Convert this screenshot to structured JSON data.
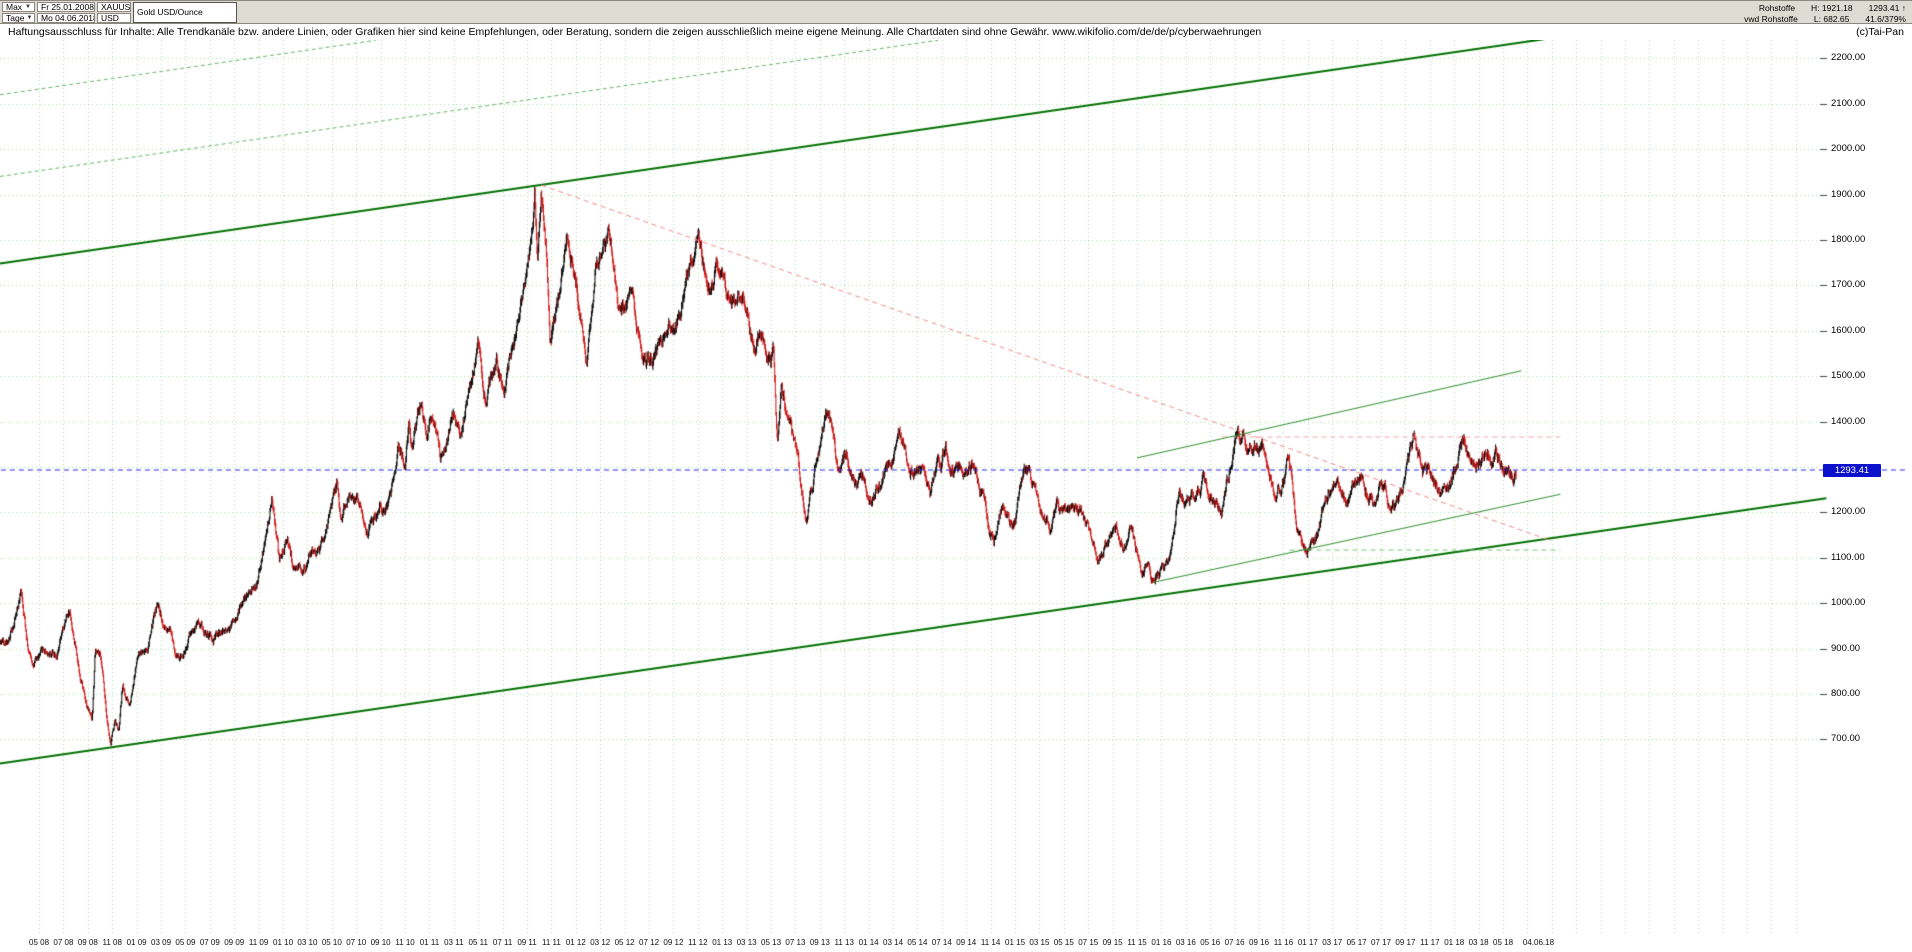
{
  "toolbar": {
    "range_label": "Max",
    "range_start_date": "Fr 25.01.2008",
    "period_label": "Tage",
    "current_date": "Mo 04.06.2018",
    "symbol": "XAUUSD",
    "currency": "USD",
    "instrument_name": "Gold USD/Ounce",
    "dropdown_icon": "▼"
  },
  "quote": {
    "category": "Rohstoffe",
    "source": "vwd Rohstoffe",
    "high_label": "H: 1921.18",
    "low_label": "L: 682.65",
    "last": "1293.41",
    "direction": "↑",
    "change": "41.6/379%"
  },
  "disclaimer": {
    "text": "Haftungsausschluss für Inhalte: Alle Trendkanäle bzw. andere Linien, oder Grafiken hier sind keine Empfehlungen, oder Beratung, sondern die zeigen ausschließlich meine eigene Meinung. Alle Chartdaten sind ohne Gewähr.  ",
    "url": "www.wikifolio.com/de/de/p/cyberwaehrungen",
    "copyright": "(c)Tai-Pan"
  },
  "chart_data": {
    "type": "ohlc",
    "instrument": "Gold USD/Ounce (XAUUSD)",
    "x_range": {
      "start": "25.01.2008",
      "end": "04.06.2018"
    },
    "ylim": [
      270,
      2240
    ],
    "y_grid_step": 100,
    "grid": true,
    "legend": "none",
    "y_grid_values": [
      700,
      800,
      900,
      1000,
      1100,
      1200,
      1300,
      1400,
      1500,
      1600,
      1700,
      1800,
      1900,
      2000,
      2100,
      2200
    ],
    "y_tick_values": [
      2200,
      2100,
      2000,
      1900,
      1800,
      1700,
      1600,
      1500,
      1400,
      1200,
      1100,
      1000,
      900,
      800,
      700
    ],
    "x_first_tick_month_index": 4,
    "x_tick_step_months": 2,
    "x_tick_labels": [
      "05 08",
      "07 08",
      "09 08",
      "11 08",
      "01 09",
      "03 09",
      "05 09",
      "07 09",
      "09 09",
      "11 09",
      "01 10",
      "03 10",
      "05 10",
      "07 10",
      "09 10",
      "11 10",
      "01 11",
      "03 11",
      "05 11",
      "07 11",
      "09 11",
      "11 11",
      "01 12",
      "03 12",
      "05 12",
      "07 12",
      "09 12",
      "11 12",
      "01 13",
      "03 13",
      "05 13",
      "07 13",
      "09 13",
      "11 13",
      "01 14",
      "03 14",
      "05 14",
      "07 14",
      "09 14",
      "11 14",
      "01 15",
      "03 15",
      "05 15",
      "07 15",
      "09 15",
      "11 15",
      "01 16",
      "03 16",
      "05 16",
      "07 16",
      "09 16",
      "11 16",
      "01 17",
      "03 17",
      "05 17",
      "07 17",
      "09 17",
      "11 17",
      "01 18",
      "03 18",
      "05 18"
    ],
    "x_end_label": "04.06.18",
    "last_month_index": 125.1,
    "key_points": {
      "high": {
        "price": 1921.18
      },
      "low": {
        "price": 682.65
      },
      "last": {
        "price": 1293.41
      }
    },
    "anchors_note": "pairs of [month index from Jan 2008, approx gold price in USD] tracing the daily close path visible in the chart",
    "monthly_anchors": [
      [
        0.8,
        912
      ],
      [
        1.6,
        930
      ],
      [
        2.2,
        988
      ],
      [
        2.55,
        1028
      ],
      [
        3.2,
        898
      ],
      [
        3.6,
        872
      ],
      [
        4.5,
        890
      ],
      [
        5.6,
        902
      ],
      [
        6.5,
        978
      ],
      [
        7.3,
        858
      ],
      [
        7.85,
        792
      ],
      [
        8.35,
        748
      ],
      [
        8.6,
        892
      ],
      [
        9.1,
        862
      ],
      [
        9.85,
        685
      ],
      [
        10.25,
        748
      ],
      [
        10.55,
        722
      ],
      [
        10.85,
        812
      ],
      [
        11.4,
        768
      ],
      [
        12.0,
        875
      ],
      [
        12.9,
        908
      ],
      [
        13.65,
        995
      ],
      [
        14.5,
        938
      ],
      [
        15.55,
        872
      ],
      [
        17.0,
        975
      ],
      [
        18.25,
        912
      ],
      [
        19.5,
        948
      ],
      [
        20.3,
        992
      ],
      [
        20.9,
        1012
      ],
      [
        21.9,
        1048
      ],
      [
        22.87,
        1172
      ],
      [
        23.1,
        1218
      ],
      [
        23.7,
        1082
      ],
      [
        24.35,
        1152
      ],
      [
        25.15,
        1052
      ],
      [
        26.3,
        1105
      ],
      [
        27.3,
        1132
      ],
      [
        28.45,
        1245
      ],
      [
        28.7,
        1180
      ],
      [
        29.7,
        1260
      ],
      [
        30.9,
        1158
      ],
      [
        31.8,
        1212
      ],
      [
        32.9,
        1255
      ],
      [
        33.45,
        1378
      ],
      [
        34.0,
        1332
      ],
      [
        34.3,
        1420
      ],
      [
        34.55,
        1338
      ],
      [
        35.2,
        1428
      ],
      [
        35.8,
        1382
      ],
      [
        36.05,
        1418
      ],
      [
        36.9,
        1312
      ],
      [
        38.0,
        1415
      ],
      [
        38.5,
        1398
      ],
      [
        39.6,
        1512
      ],
      [
        40.05,
        1568
      ],
      [
        40.55,
        1478
      ],
      [
        41.5,
        1528
      ],
      [
        42.05,
        1480
      ],
      [
        43.2,
        1618
      ],
      [
        44.3,
        1788
      ],
      [
        44.62,
        1908
      ],
      [
        44.85,
        1732
      ],
      [
        45.17,
        1920
      ],
      [
        45.55,
        1790
      ],
      [
        45.88,
        1588
      ],
      [
        46.5,
        1672
      ],
      [
        47.27,
        1795
      ],
      [
        48.1,
        1692
      ],
      [
        48.92,
        1540
      ],
      [
        49.7,
        1732
      ],
      [
        50.85,
        1788
      ],
      [
        51.45,
        1642
      ],
      [
        52.6,
        1652
      ],
      [
        53.5,
        1530
      ],
      [
        54.7,
        1568
      ],
      [
        56.0,
        1612
      ],
      [
        57.9,
        1792
      ],
      [
        58.9,
        1698
      ],
      [
        59.6,
        1740
      ],
      [
        61.0,
        1648
      ],
      [
        61.65,
        1692
      ],
      [
        62.6,
        1570
      ],
      [
        63.25,
        1615
      ],
      [
        64.2,
        1555
      ],
      [
        64.52,
        1348
      ],
      [
        64.85,
        1475
      ],
      [
        65.65,
        1385
      ],
      [
        66.85,
        1182
      ],
      [
        67.6,
        1292
      ],
      [
        68.75,
        1428
      ],
      [
        69.45,
        1305
      ],
      [
        70.2,
        1340
      ],
      [
        71.0,
        1258
      ],
      [
        71.55,
        1248
      ],
      [
        72.05,
        1192
      ],
      [
        72.9,
        1265
      ],
      [
        74.5,
        1382
      ],
      [
        75.4,
        1282
      ],
      [
        76.6,
        1308
      ],
      [
        77.1,
        1242
      ],
      [
        78.3,
        1338
      ],
      [
        79.6,
        1288
      ],
      [
        80.6,
        1312
      ],
      [
        81.6,
        1212
      ],
      [
        82.25,
        1132
      ],
      [
        83.0,
        1218
      ],
      [
        83.65,
        1172
      ],
      [
        84.05,
        1188
      ],
      [
        84.72,
        1298
      ],
      [
        85.6,
        1252
      ],
      [
        86.3,
        1190
      ],
      [
        87.0,
        1152
      ],
      [
        87.5,
        1205
      ],
      [
        88.4,
        1175
      ],
      [
        89.2,
        1208
      ],
      [
        90.0,
        1162
      ],
      [
        90.78,
        1075
      ],
      [
        91.5,
        1122
      ],
      [
        92.35,
        1152
      ],
      [
        93.0,
        1108
      ],
      [
        93.5,
        1180
      ],
      [
        94.4,
        1062
      ],
      [
        94.85,
        1080
      ],
      [
        95.35,
        1048
      ],
      [
        96.0,
        1075
      ],
      [
        96.7,
        1092
      ],
      [
        97.4,
        1245
      ],
      [
        98.3,
        1210
      ],
      [
        99.45,
        1278
      ],
      [
        100.3,
        1228
      ],
      [
        101.0,
        1212
      ],
      [
        101.82,
        1335
      ],
      [
        102.3,
        1372
      ],
      [
        103.1,
        1330
      ],
      [
        103.75,
        1348
      ],
      [
        104.6,
        1308
      ],
      [
        105.35,
        1252
      ],
      [
        106.05,
        1270
      ],
      [
        106.32,
        1318
      ],
      [
        107.1,
        1172
      ],
      [
        107.92,
        1128
      ],
      [
        108.7,
        1158
      ],
      [
        109.7,
        1242
      ],
      [
        110.5,
        1258
      ],
      [
        111.3,
        1228
      ],
      [
        112.35,
        1288
      ],
      [
        113.3,
        1216
      ],
      [
        113.95,
        1268
      ],
      [
        115.15,
        1208
      ],
      [
        116.7,
        1350
      ],
      [
        117.4,
        1282
      ],
      [
        118.1,
        1302
      ],
      [
        118.5,
        1270
      ],
      [
        119.4,
        1240
      ],
      [
        120.1,
        1305
      ],
      [
        120.82,
        1360
      ],
      [
        121.35,
        1310
      ],
      [
        122.1,
        1330
      ],
      [
        122.88,
        1352
      ],
      [
        123.12,
        1322
      ],
      [
        123.38,
        1358
      ],
      [
        124.05,
        1305
      ],
      [
        124.4,
        1316
      ],
      [
        124.72,
        1288
      ],
      [
        125.1,
        1293.41
      ]
    ],
    "trendlines": [
      {
        "name": "channel-parallel-dashed-1",
        "layer": "below",
        "from_m": 0.8,
        "from_p": 2120,
        "to_m": 31.6,
        "to_p": 2240,
        "color": "#6ab56a",
        "width": 1,
        "dash": [
          4,
          3
        ]
      },
      {
        "name": "channel-parallel-dashed-2",
        "layer": "below",
        "from_m": 0.8,
        "from_p": 1940,
        "to_m": 77.7,
        "to_p": 2240,
        "color": "#6ab56a",
        "width": 1,
        "dash": [
          4,
          3
        ]
      },
      {
        "name": "upper-channel-line",
        "layer": "above",
        "from_m": 0.8,
        "from_p": 1748,
        "to_m": 137.0,
        "to_p": 2280,
        "color": "#017001",
        "width": 2,
        "dash": []
      },
      {
        "name": "lower-channel-line",
        "layer": "above",
        "from_m": 0.8,
        "from_p": 647,
        "to_m": 150.5,
        "to_p": 1231,
        "color": "#017001",
        "width": 2,
        "dash": []
      },
      {
        "name": "downtrend-from-2011-high",
        "layer": "above",
        "from_m": 45.17,
        "from_p": 1921,
        "to_m": 128.0,
        "to_p": 1137,
        "color": "#f08a8a",
        "width": 1,
        "dash": [
          5,
          4
        ]
      },
      {
        "name": "horizontal-resistance-1366",
        "layer": "above",
        "from_m": 101.0,
        "from_p": 1366,
        "to_m": 128.7,
        "to_p": 1366,
        "color": "#f4a8a8",
        "width": 1,
        "dash": [
          5,
          4
        ]
      },
      {
        "name": "horizontal-support-1117",
        "layer": "above",
        "from_m": 106.5,
        "from_p": 1117,
        "to_m": 128.7,
        "to_p": 1117,
        "color": "#79c979",
        "width": 1,
        "dash": [
          5,
          4
        ]
      },
      {
        "name": "uptrend-resistance-line",
        "layer": "above",
        "from_m": 94.0,
        "from_p": 1320,
        "to_m": 125.5,
        "to_p": 1512,
        "color": "#2f8f2f",
        "width": 1,
        "dash": []
      },
      {
        "name": "uptrend-support-line",
        "layer": "above",
        "from_m": 95.35,
        "from_p": 1046,
        "to_m": 128.7,
        "to_p": 1240,
        "color": "#2f8f2f",
        "width": 1,
        "dash": []
      },
      {
        "name": "last-price-line",
        "layer": "above",
        "from_m": -0.6,
        "from_p": 1293.41,
        "to_m": 157.0,
        "to_p": 1293.41,
        "color": "#2828e8",
        "width": 1,
        "dash": [
          5,
          4
        ]
      }
    ],
    "colors": {
      "up": "#000000",
      "down": "#cc1111",
      "grid": "rgba(0,150,0,0.32)",
      "badge_bg": "#0b10cc",
      "badge_text": "#ffffff"
    }
  }
}
